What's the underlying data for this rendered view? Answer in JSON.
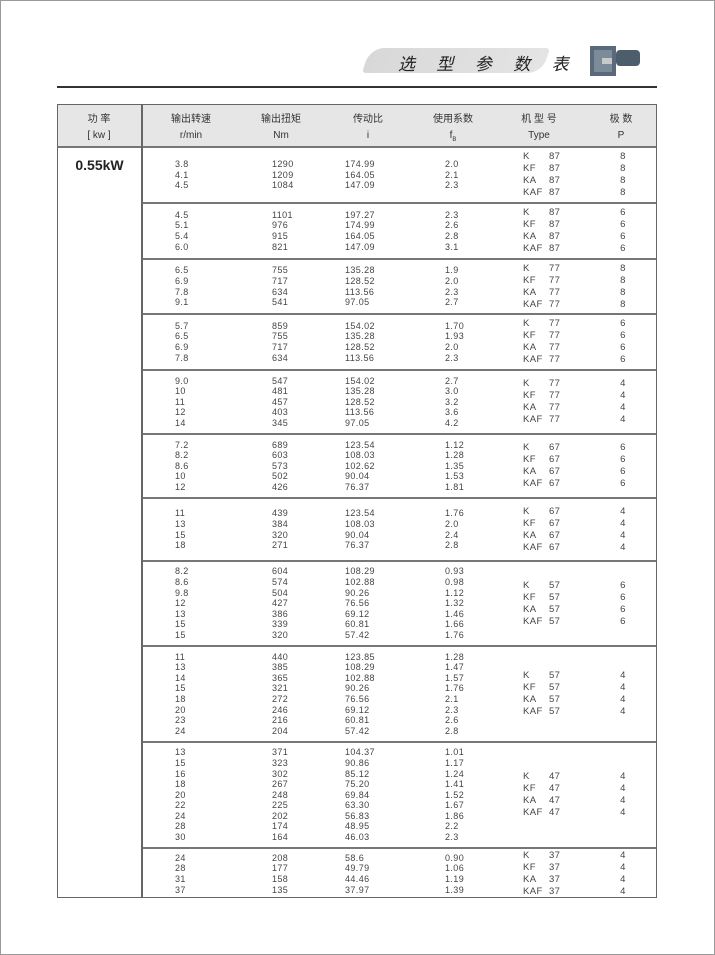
{
  "header": {
    "title": "选 型 参 数 表",
    "product_image": "gear-motor-image"
  },
  "columns": [
    {
      "l1": "功  率",
      "l2": "[ kw ]"
    },
    {
      "l1": "输出转速",
      "l2": "r/min"
    },
    {
      "l1": "输出扭矩",
      "l2": "Nm"
    },
    {
      "l1": "传动比",
      "l2": "i"
    },
    {
      "l1": "使用系数",
      "l2": "f",
      "sub": "B"
    },
    {
      "l1": "机 型 号",
      "l2": "Type"
    },
    {
      "l1": "极  数",
      "l2": "P"
    }
  ],
  "power": "0.55kW",
  "groups": [
    {
      "speed": [
        "3.8",
        "4.1",
        "4.5"
      ],
      "torque": [
        "1290",
        "1209",
        "1084"
      ],
      "ratio": [
        "174.99",
        "164.05",
        "147.09"
      ],
      "fb": [
        "2.0",
        "2.1",
        "2.3"
      ],
      "types": [
        [
          "K",
          "87"
        ],
        [
          "KF",
          "87"
        ],
        [
          "KA",
          "87"
        ],
        [
          "KAF",
          "87"
        ]
      ],
      "poles": [
        "8",
        "8",
        "8",
        "8"
      ]
    },
    {
      "speed": [
        "4.5",
        "5.1",
        "5.4",
        "6.0"
      ],
      "torque": [
        "1101",
        "976",
        "915",
        "821"
      ],
      "ratio": [
        "197.27",
        "174.99",
        "164.05",
        "147.09"
      ],
      "fb": [
        "2.3",
        "2.6",
        "2.8",
        "3.1"
      ],
      "types": [
        [
          "K",
          "87"
        ],
        [
          "KF",
          "87"
        ],
        [
          "KA",
          "87"
        ],
        [
          "KAF",
          "87"
        ]
      ],
      "poles": [
        "6",
        "6",
        "6",
        "6"
      ]
    },
    {
      "speed": [
        "6.5",
        "6.9",
        "7.8",
        "9.1"
      ],
      "torque": [
        "755",
        "717",
        "634",
        "541"
      ],
      "ratio": [
        "135.28",
        "128.52",
        "113.56",
        "97.05"
      ],
      "fb": [
        "1.9",
        "2.0",
        "2.3",
        "2.7"
      ],
      "types": [
        [
          "K",
          "77"
        ],
        [
          "KF",
          "77"
        ],
        [
          "KA",
          "77"
        ],
        [
          "KAF",
          "77"
        ]
      ],
      "poles": [
        "8",
        "8",
        "8",
        "8"
      ]
    },
    {
      "speed": [
        "5.7",
        "6.5",
        "6.9",
        "7.8"
      ],
      "torque": [
        "859",
        "755",
        "717",
        "634"
      ],
      "ratio": [
        "154.02",
        "135.28",
        "128.52",
        "113.56"
      ],
      "fb": [
        "1.70",
        "1.93",
        "2.0",
        "2.3"
      ],
      "types": [
        [
          "K",
          "77"
        ],
        [
          "KF",
          "77"
        ],
        [
          "KA",
          "77"
        ],
        [
          "KAF",
          "77"
        ]
      ],
      "poles": [
        "6",
        "6",
        "6",
        "6"
      ]
    },
    {
      "speed": [
        "9.0",
        "10",
        "11",
        "12",
        "14"
      ],
      "torque": [
        "547",
        "481",
        "457",
        "403",
        "345"
      ],
      "ratio": [
        "154.02",
        "135.28",
        "128.52",
        "113.56",
        "97.05"
      ],
      "fb": [
        "2.7",
        "3.0",
        "3.2",
        "3.6",
        "4.2"
      ],
      "types": [
        [
          "K",
          "77"
        ],
        [
          "KF",
          "77"
        ],
        [
          "KA",
          "77"
        ],
        [
          "KAF",
          "77"
        ]
      ],
      "poles": [
        "4",
        "4",
        "4",
        "4"
      ]
    },
    {
      "speed": [
        "7.2",
        "8.2",
        "8.6",
        "10",
        "12"
      ],
      "torque": [
        "689",
        "603",
        "573",
        "502",
        "426"
      ],
      "ratio": [
        "123.54",
        "108.03",
        "102.62",
        "90.04",
        "76.37"
      ],
      "fb": [
        "1.12",
        "1.28",
        "1.35",
        "1.53",
        "1.81"
      ],
      "types": [
        [
          "K",
          "67"
        ],
        [
          "KF",
          "67"
        ],
        [
          "KA",
          "67"
        ],
        [
          "KAF",
          "67"
        ]
      ],
      "poles": [
        "6",
        "6",
        "6",
        "6"
      ]
    },
    {
      "speed": [
        "11",
        "13",
        "15",
        "18"
      ],
      "torque": [
        "439",
        "384",
        "320",
        "271"
      ],
      "ratio": [
        "123.54",
        "108.03",
        "90.04",
        "76.37"
      ],
      "fb": [
        "1.76",
        "2.0",
        "2.4",
        "2.8"
      ],
      "types": [
        [
          "K",
          "67"
        ],
        [
          "KF",
          "67"
        ],
        [
          "KA",
          "67"
        ],
        [
          "KAF",
          "67"
        ]
      ],
      "poles": [
        "4",
        "4",
        "4",
        "4"
      ]
    },
    {
      "speed": [
        "8.2",
        "8.6",
        "9.8",
        "12",
        "13",
        "15",
        "15"
      ],
      "torque": [
        "604",
        "574",
        "504",
        "427",
        "386",
        "339",
        "320"
      ],
      "ratio": [
        "108.29",
        "102.88",
        "90.26",
        "76.56",
        "69.12",
        "60.81",
        "57.42"
      ],
      "fb": [
        "0.93",
        "0.98",
        "1.12",
        "1.32",
        "1.46",
        "1.66",
        "1.76"
      ],
      "types": [
        [
          "K",
          "57"
        ],
        [
          "KF",
          "57"
        ],
        [
          "KA",
          "57"
        ],
        [
          "KAF",
          "57"
        ]
      ],
      "poles": [
        "6",
        "6",
        "6",
        "6"
      ]
    },
    {
      "speed": [
        "11",
        "13",
        "14",
        "15",
        "18",
        "20",
        "23",
        "24"
      ],
      "torque": [
        "440",
        "385",
        "365",
        "321",
        "272",
        "246",
        "216",
        "204"
      ],
      "ratio": [
        "123.85",
        "108.29",
        "102.88",
        "90.26",
        "76.56",
        "69.12",
        "60.81",
        "57.42"
      ],
      "fb": [
        "1.28",
        "1.47",
        "1.57",
        "1.76",
        "2.1",
        "2.3",
        "2.6",
        "2.8"
      ],
      "types": [
        [
          "K",
          "57"
        ],
        [
          "KF",
          "57"
        ],
        [
          "KA",
          "57"
        ],
        [
          "KAF",
          "57"
        ]
      ],
      "poles": [
        "4",
        "4",
        "4",
        "4"
      ]
    },
    {
      "speed": [
        "13",
        "15",
        "16",
        "18",
        "20",
        "22",
        "24",
        "28",
        "30"
      ],
      "torque": [
        "371",
        "323",
        "302",
        "267",
        "248",
        "225",
        "202",
        "174",
        "164"
      ],
      "ratio": [
        "104.37",
        "90.86",
        "85.12",
        "75.20",
        "69.84",
        "63.30",
        "56.83",
        "48.95",
        "46.03"
      ],
      "fb": [
        "1.01",
        "1.17",
        "1.24",
        "1.41",
        "1.52",
        "1.67",
        "1.86",
        "2.2",
        "2.3"
      ],
      "types": [
        [
          "K",
          "47"
        ],
        [
          "KF",
          "47"
        ],
        [
          "KA",
          "47"
        ],
        [
          "KAF",
          "47"
        ]
      ],
      "poles": [
        "4",
        "4",
        "4",
        "4"
      ]
    },
    {
      "speed": [
        "24",
        "28",
        "31",
        "37"
      ],
      "torque": [
        "208",
        "177",
        "158",
        "135"
      ],
      "ratio": [
        "58.6",
        "49.79",
        "44.46",
        "37.97"
      ],
      "fb": [
        "0.90",
        "1.06",
        "1.19",
        "1.39"
      ],
      "types": [
        [
          "K",
          "37"
        ],
        [
          "KF",
          "37"
        ],
        [
          "KA",
          "37"
        ],
        [
          "KAF",
          "37"
        ]
      ],
      "poles": [
        "4",
        "4",
        "4",
        "4"
      ]
    }
  ]
}
